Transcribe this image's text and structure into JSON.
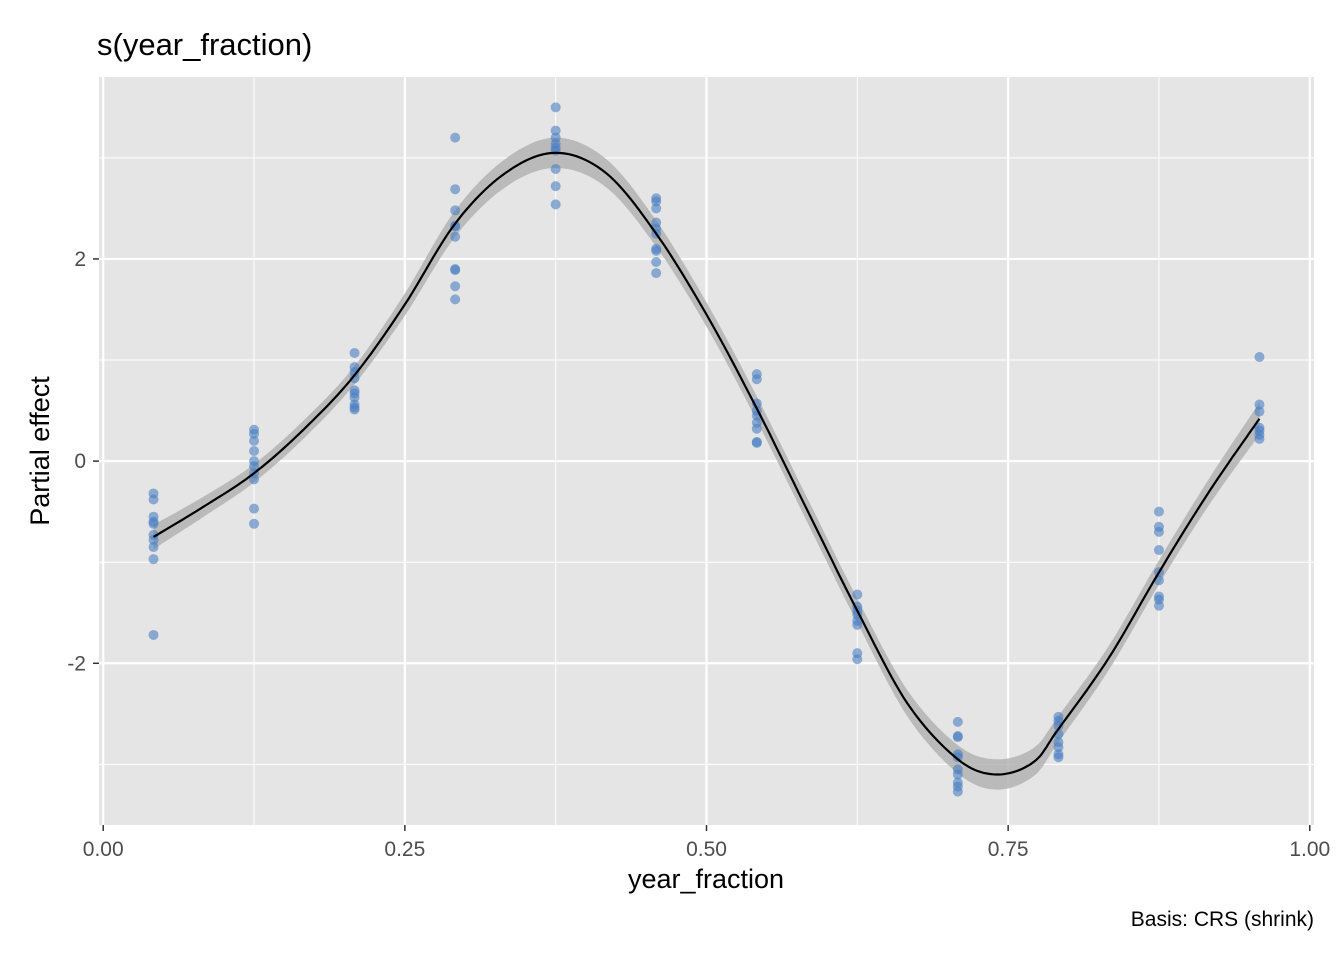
{
  "chart_data": {
    "type": "scatter",
    "title": "s(year_fraction)",
    "xlabel": "year_fraction",
    "ylabel": "Partial effect",
    "caption": "Basis: CRS (shrink)",
    "xlim": [
      0,
      1
    ],
    "ylim": [
      -3.6,
      3.8
    ],
    "x_ticks": [
      0,
      0.25,
      0.5,
      0.75,
      1
    ],
    "x_tick_labels": [
      "0.00",
      "0.25",
      "0.50",
      "0.75",
      "1.00"
    ],
    "y_ticks": [
      -2,
      0,
      2
    ],
    "y_tick_labels": [
      "-2",
      "0",
      "2"
    ],
    "grid": true,
    "colors": {
      "panel": "#e5e5e5",
      "grid": "#ffffff",
      "points": "#4a7fc1",
      "ribbon": "#b3b3b3",
      "line": "#000000"
    },
    "series": [
      {
        "kind": "partial_residuals",
        "points": [
          {
            "x": 0.0417,
            "y": [
              -0.32,
              -0.38,
              -0.55,
              -0.6,
              -0.62,
              -0.73,
              -0.78,
              -0.85,
              -0.97,
              -1.72
            ]
          },
          {
            "x": 0.125,
            "y": [
              0.31,
              0.27,
              0.2,
              0.1,
              0.0,
              -0.05,
              -0.12,
              -0.18,
              -0.47,
              -0.62
            ]
          },
          {
            "x": 0.2083,
            "y": [
              1.07,
              0.93,
              0.88,
              0.82,
              0.7,
              0.67,
              0.63,
              0.56,
              0.53,
              0.51
            ]
          },
          {
            "x": 0.2917,
            "y": [
              3.2,
              2.69,
              2.48,
              2.33,
              2.32,
              2.22,
              1.9,
              1.89,
              1.73,
              1.6
            ]
          },
          {
            "x": 0.375,
            "y": [
              3.5,
              3.27,
              3.2,
              3.14,
              3.1,
              3.07,
              2.89,
              2.72,
              2.54
            ]
          },
          {
            "x": 0.4583,
            "y": [
              2.6,
              2.57,
              2.5,
              2.36,
              2.3,
              2.25,
              2.1,
              2.08,
              1.97,
              1.86
            ]
          },
          {
            "x": 0.5417,
            "y": [
              0.86,
              0.81,
              0.57,
              0.5,
              0.45,
              0.38,
              0.32,
              0.19,
              0.18
            ]
          },
          {
            "x": 0.625,
            "y": [
              -1.32,
              -1.44,
              -1.48,
              -1.52,
              -1.58,
              -1.62,
              -1.9,
              -1.96
            ]
          },
          {
            "x": 0.7083,
            "y": [
              -2.58,
              -2.72,
              -2.73,
              -2.9,
              -2.93,
              -3.05,
              -3.1,
              -3.18,
              -3.22,
              -3.27
            ]
          },
          {
            "x": 0.7917,
            "y": [
              -2.53,
              -2.57,
              -2.62,
              -2.7,
              -2.78,
              -2.83,
              -2.9,
              -2.93
            ]
          },
          {
            "x": 0.875,
            "y": [
              -0.5,
              -0.65,
              -0.7,
              -0.88,
              -1.1,
              -1.18,
              -1.34,
              -1.37,
              -1.43
            ]
          },
          {
            "x": 0.9583,
            "y": [
              1.03,
              0.56,
              0.49,
              0.33,
              0.3,
              0.26,
              0.22
            ]
          }
        ]
      },
      {
        "kind": "smooth",
        "x": [
          0.0417,
          0.0833,
          0.125,
          0.1667,
          0.2083,
          0.25,
          0.2917,
          0.3333,
          0.375,
          0.4167,
          0.4583,
          0.5,
          0.5417,
          0.5833,
          0.625,
          0.6667,
          0.7083,
          0.74,
          0.7708,
          0.7917,
          0.8333,
          0.875,
          0.9167,
          0.9583
        ],
        "y": [
          -0.75,
          -0.45,
          -0.12,
          0.32,
          0.85,
          1.55,
          2.35,
          2.85,
          3.05,
          2.85,
          2.25,
          1.45,
          0.52,
          -0.48,
          -1.48,
          -2.4,
          -2.95,
          -3.1,
          -2.98,
          -2.65,
          -1.95,
          -1.1,
          -0.3,
          0.42
        ],
        "ci_halfwidth": [
          0.12,
          0.1,
          0.09,
          0.09,
          0.09,
          0.11,
          0.13,
          0.14,
          0.15,
          0.14,
          0.13,
          0.12,
          0.12,
          0.12,
          0.12,
          0.13,
          0.14,
          0.15,
          0.14,
          0.13,
          0.12,
          0.12,
          0.13,
          0.16
        ]
      }
    ]
  }
}
